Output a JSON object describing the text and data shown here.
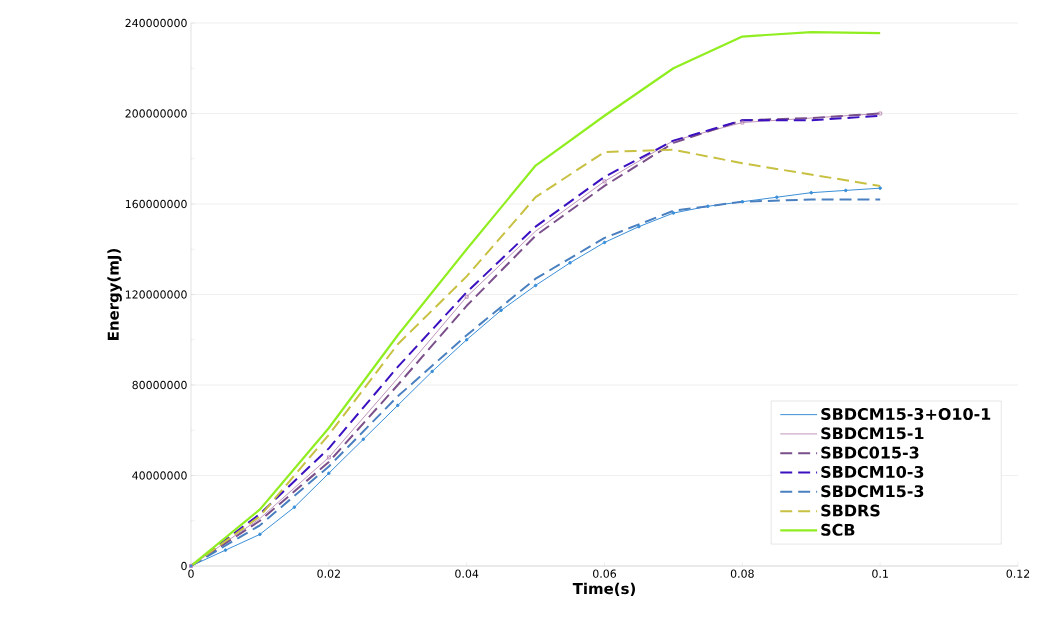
{
  "chart_data": {
    "type": "line",
    "xlabel": "Time(s)",
    "ylabel": "Energy(mJ)",
    "xlim": [
      0,
      0.12
    ],
    "xticks": [
      0,
      0.02,
      0.04,
      0.06,
      0.08,
      0.1,
      0.12
    ],
    "ylim": [
      0,
      240000000
    ],
    "yticks": [
      0,
      40000000,
      80000000,
      120000000,
      160000000,
      200000000,
      240000000
    ],
    "grid": "y",
    "legend": "right",
    "series": [
      {
        "name": "SBDCM15-3+O10-1",
        "color": "#3a8fd8",
        "marker": "circle",
        "line_style": "solid",
        "x": [
          0,
          0.005,
          0.01,
          0.015,
          0.02,
          0.025,
          0.03,
          0.035,
          0.04,
          0.045,
          0.05,
          0.055,
          0.06,
          0.065,
          0.07,
          0.075,
          0.08,
          0.085,
          0.09,
          0.095,
          0.1
        ],
        "values": [
          0,
          7000000,
          14000000,
          26000000,
          41000000,
          56000000,
          71000000,
          86000000,
          100000000,
          113000000,
          124000000,
          134000000,
          143000000,
          150000000,
          156000000,
          159000000,
          161000000,
          163000000,
          165000000,
          166000000,
          167000000
        ]
      },
      {
        "name": "SBDCM15-1",
        "color": "#b07aa8",
        "marker": "square",
        "line_style": "solid",
        "x": [
          0,
          0.01,
          0.02,
          0.03,
          0.04,
          0.05,
          0.06,
          0.07,
          0.08,
          0.09,
          0.1
        ],
        "values": [
          0,
          21000000,
          48000000,
          83000000,
          119000000,
          148000000,
          170000000,
          188000000,
          196000000,
          198000000,
          200000000
        ]
      },
      {
        "name": "SBDC015-3",
        "color": "#7a4f8a",
        "marker": "none",
        "line_style": "dashed",
        "x": [
          0,
          0.01,
          0.02,
          0.03,
          0.04,
          0.05,
          0.06,
          0.07,
          0.08,
          0.09,
          0.1
        ],
        "values": [
          0,
          20000000,
          46000000,
          80000000,
          115000000,
          146000000,
          168000000,
          187000000,
          197000000,
          198000000,
          200000000
        ]
      },
      {
        "name": "SBDCM10-3",
        "color": "#3a10c0",
        "marker": "none",
        "line_style": "dashed",
        "x": [
          0,
          0.01,
          0.02,
          0.03,
          0.04,
          0.05,
          0.06,
          0.07,
          0.08,
          0.09,
          0.1
        ],
        "values": [
          0,
          23000000,
          52000000,
          88000000,
          121000000,
          150000000,
          172000000,
          188000000,
          197000000,
          197000000,
          199000000
        ]
      },
      {
        "name": "SBDCM15-3",
        "color": "#4a80c0",
        "marker": "none",
        "line_style": "dashed",
        "x": [
          0,
          0.01,
          0.02,
          0.03,
          0.04,
          0.05,
          0.06,
          0.07,
          0.08,
          0.09,
          0.1
        ],
        "values": [
          0,
          18000000,
          44000000,
          75000000,
          102000000,
          127000000,
          145000000,
          157000000,
          161000000,
          162000000,
          162000000
        ]
      },
      {
        "name": "SBDRS",
        "color": "#c8c040",
        "marker": "none",
        "line_style": "dashed",
        "x": [
          0,
          0.01,
          0.02,
          0.03,
          0.04,
          0.05,
          0.06,
          0.07,
          0.08,
          0.09,
          0.1
        ],
        "values": [
          0,
          22000000,
          58000000,
          98000000,
          128000000,
          163000000,
          183000000,
          184000000,
          178000000,
          173000000,
          168000000
        ]
      },
      {
        "name": "SCB",
        "color": "#90ee20",
        "marker": "none",
        "line_style": "solid",
        "x": [
          0,
          0.01,
          0.02,
          0.03,
          0.04,
          0.05,
          0.06,
          0.07,
          0.08,
          0.09,
          0.1
        ],
        "values": [
          0,
          25000000,
          61000000,
          102000000,
          140000000,
          177000000,
          199000000,
          220000000,
          234000000,
          236000000,
          235500000
        ]
      }
    ]
  }
}
